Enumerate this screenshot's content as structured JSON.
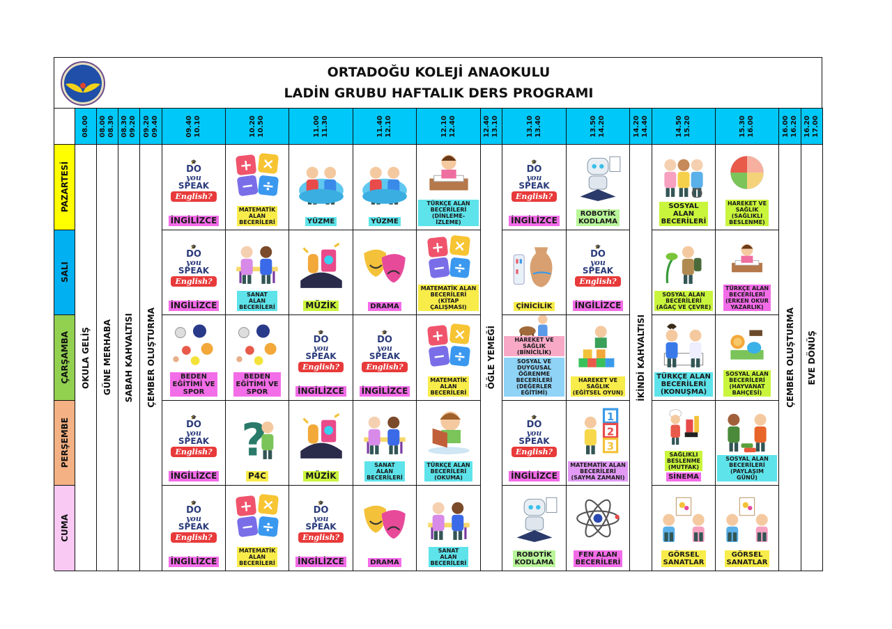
{
  "header": {
    "title_line1": "ORTADOĞU KOLEJİ ANAOKULU",
    "title_line2": "LADİN GRUBU HAFTALIK DERS PROGRAMI",
    "logo_text": "ORTADOĞU KOLEJİ"
  },
  "english_badge": {
    "line1": "DO",
    "line2": "you",
    "line3": "SPEAK",
    "line4": "English?"
  },
  "time_columns": [
    "08.00",
    "08.00\n08.30",
    "08.30\n09.20",
    "09.20\n09.40",
    "09.40\n10.10",
    "10.20\n10.50",
    "11.00\n11.30",
    "11.40\n12.10",
    "12.10\n12.40",
    "12.40\n13.10",
    "13.10\n13.40",
    "13.50\n14.20",
    "14.20\n14.40",
    "14.50\n15.20",
    "15.30\n16.00",
    "16.00\n16.20",
    "16.20\n17.00"
  ],
  "fixed_activities": [
    {
      "col": 0,
      "label": "OKULA GELİŞ"
    },
    {
      "col": 1,
      "label": "GÜNE MERHABA"
    },
    {
      "col": 2,
      "label": "SABAH KAHVALTISI"
    },
    {
      "col": 3,
      "label": "ÇEMBER OLUŞTURMA"
    },
    {
      "col": 9,
      "label": "ÖĞLE YEMEĞİ"
    },
    {
      "col": 12,
      "label": "İKİNDİ KAHVALTISI"
    },
    {
      "col": 15,
      "label": "ÇEMBER OLUŞTURMA"
    },
    {
      "col": 16,
      "label": "EVE DÖNÜŞ"
    }
  ],
  "colors": {
    "header": "#00c8f8",
    "pink": "#f36ce8",
    "yellow": "#f8ec4a",
    "cyan": "#5ee3ea",
    "lime": "#c9f53c",
    "green": "#b9f59a",
    "rose": "#f7a9c6",
    "blue": "#8fd3f7"
  },
  "days": [
    {
      "name": "PAZARTESİ",
      "color": "#ffff00",
      "cells": [
        {
          "icon": "english",
          "labels": [
            {
              "text": "İNGİLİZCE",
              "color": "#f36ce8",
              "size": "big"
            }
          ]
        },
        {
          "icon": "math",
          "labels": [
            {
              "text": "MATEMATİK\nALAN\nBECERİLERİ",
              "color": "#f8ec4a"
            }
          ]
        },
        {
          "icon": "swim",
          "labels": [
            {
              "text": "YÜZME",
              "color": "#5ee3ea",
              "size": "mid"
            }
          ]
        },
        {
          "icon": "swim",
          "labels": [
            {
              "text": "YÜZME",
              "color": "#5ee3ea",
              "size": "mid"
            }
          ]
        },
        {
          "icon": "writing",
          "labels": [
            {
              "text": "TÜRKÇE ALAN\nBECERİLERİ\n(DİNLEME-İZLEME)",
              "color": "#5ee3ea"
            }
          ]
        },
        {
          "icon": "english",
          "labels": [
            {
              "text": "İNGİLİZCE",
              "color": "#f36ce8",
              "size": "big"
            }
          ]
        },
        {
          "icon": "robot",
          "labels": [
            {
              "text": "ROBOTİK\nKODLAMA",
              "color": "#b9f59a",
              "size": "mid"
            }
          ]
        },
        {
          "icon": "kids",
          "labels": [
            {
              "text": "SOSYAL\nALAN\nBECERİLERİ",
              "color": "#c9f53c",
              "size": "mid"
            }
          ]
        },
        {
          "icon": "food",
          "labels": [
            {
              "text": "HAREKET VE\nSAĞLIK\n(SAĞLIKLI\nBESLENME)",
              "color": "#c9f53c"
            }
          ]
        }
      ]
    },
    {
      "name": "SALI",
      "color": "#00b0f0",
      "cells": [
        {
          "icon": "english",
          "labels": [
            {
              "text": "İNGİLİZCE",
              "color": "#f36ce8",
              "size": "big"
            }
          ]
        },
        {
          "icon": "art",
          "labels": [
            {
              "text": "SANAT\nALAN\nBECERİLERİ",
              "color": "#5ee3ea"
            }
          ]
        },
        {
          "icon": "music",
          "labels": [
            {
              "text": "MÜZİK",
              "color": "#c9f53c",
              "size": "big"
            }
          ]
        },
        {
          "icon": "drama",
          "labels": [
            {
              "text": "DRAMA",
              "color": "#f36ce8",
              "size": "mid"
            }
          ]
        },
        {
          "icon": "math",
          "labels": [
            {
              "text": "MATEMATİK ALAN\nBECERİLERİ\n(KİTAP ÇALIŞMASI)",
              "color": "#f8ec4a"
            }
          ]
        },
        {
          "icon": "vase",
          "labels": [
            {
              "text": "ÇİNİCİLİK",
              "color": "#f8ec4a",
              "size": "mid"
            }
          ]
        },
        {
          "icon": "english",
          "labels": [
            {
              "text": "İNGİLİZCE",
              "color": "#f36ce8",
              "size": "big"
            }
          ]
        },
        {
          "icon": "explorer",
          "labels": [
            {
              "text": "SOSYAL ALAN\nBECERİLERİ\n(AĞAÇ VE ÇEVRE)",
              "color": "#c9f53c"
            }
          ]
        },
        {
          "icon": "writing",
          "labels": [
            {
              "text": "TÜRKÇE ALAN\nBECERİLERİ\n(ERKEN OKUR\nYAZARLIK)",
              "color": "#f36ce8"
            }
          ]
        }
      ]
    },
    {
      "name": "ÇARŞAMBA",
      "color": "#92d050",
      "cells": [
        {
          "icon": "sport",
          "labels": [
            {
              "text": "BEDEN\nEĞİTİMİ VE\nSPOR",
              "color": "#f36ce8",
              "size": "mid"
            }
          ]
        },
        {
          "icon": "sport",
          "labels": [
            {
              "text": "BEDEN\nEĞİTİMİ VE\nSPOR",
              "color": "#f36ce8",
              "size": "mid"
            }
          ]
        },
        {
          "icon": "english",
          "labels": [
            {
              "text": "İNGİLİZCE",
              "color": "#f36ce8",
              "size": "big"
            }
          ]
        },
        {
          "icon": "english",
          "labels": [
            {
              "text": "İNGİLİZCE",
              "color": "#f36ce8",
              "size": "big"
            }
          ]
        },
        {
          "icon": "math",
          "labels": [
            {
              "text": "MATEMATİK\nALAN\nBECERİLERİ",
              "color": "#f8ec4a"
            }
          ]
        },
        {
          "icon": "horse",
          "labels": [
            {
              "text": "HAREKET VE SAĞLIK\n(BİNİCİLİK)",
              "color": "#f7a9c6"
            },
            {
              "text": "SOSYAL VE\nDUYGUSAL ÖĞRENME\nBECERİLERİ\n(DEĞERLER EĞİTİMİ)",
              "color": "#8fd3f7"
            }
          ]
        },
        {
          "icon": "blocks",
          "labels": [
            {
              "text": "HAREKET VE\nSAĞLIK\n(EĞİTSEL OYUN)",
              "color": "#f8ec4a"
            }
          ]
        },
        {
          "icon": "talk",
          "labels": [
            {
              "text": "TÜRKÇE ALAN\nBECERİLERİ\n(KONUŞMA)",
              "color": "#5ee3ea",
              "size": "mid"
            }
          ]
        },
        {
          "icon": "zoo",
          "labels": [
            {
              "text": "SOSYAL ALAN\nBECERİLERİ\n(HAYVANAT\nBAHÇESİ)",
              "color": "#c9f53c"
            }
          ]
        }
      ]
    },
    {
      "name": "PERŞEMBE",
      "color": "#f4b183",
      "cells": [
        {
          "icon": "english",
          "labels": [
            {
              "text": "İNGİLİZCE",
              "color": "#f36ce8",
              "size": "big"
            }
          ]
        },
        {
          "icon": "question",
          "labels": [
            {
              "text": "P4C",
              "color": "#f8ec4a",
              "size": "big"
            }
          ]
        },
        {
          "icon": "music",
          "labels": [
            {
              "text": "MÜZİK",
              "color": "#c9f53c",
              "size": "big"
            }
          ]
        },
        {
          "icon": "art",
          "labels": [
            {
              "text": "SANAT\nALAN\nBECERİLERİ",
              "color": "#5ee3ea"
            }
          ]
        },
        {
          "icon": "reading",
          "labels": [
            {
              "text": "TÜRKÇE ALAN\nBECERİLERİ\n(OKUMA)",
              "color": "#5ee3ea"
            }
          ]
        },
        {
          "icon": "english",
          "labels": [
            {
              "text": "İNGİLİZCE",
              "color": "#f36ce8",
              "size": "big"
            }
          ]
        },
        {
          "icon": "numbers",
          "labels": [
            {
              "text": "MATEMATİK ALAN\nBECERİLERİ\n(SAYMA ZAMANI)",
              "color": "#e29af5"
            }
          ]
        },
        {
          "icon": "chef",
          "labels": [
            {
              "text": "SAĞLIKLI\nBESLENME\n(MUTFAK)",
              "color": "#c9f53c"
            },
            {
              "text": "SİNEMA",
              "color": "#f36ce8",
              "size": "mid"
            }
          ]
        },
        {
          "icon": "toys",
          "labels": [
            {
              "text": "SOSYAL ALAN\nBECERİLERİ\n(PAYLAŞIM GÜNÜ)",
              "color": "#5ee3ea"
            }
          ]
        }
      ]
    },
    {
      "name": "CUMA",
      "color": "#f9c9f3",
      "cells": [
        {
          "icon": "english",
          "labels": [
            {
              "text": "İNGİLİZCE",
              "color": "#f36ce8",
              "size": "big"
            }
          ]
        },
        {
          "icon": "math",
          "labels": [
            {
              "text": "MATEMATİK\nALAN\nBECERİLERİ",
              "color": "#f8ec4a"
            }
          ]
        },
        {
          "icon": "english",
          "labels": [
            {
              "text": "İNGİLİZCE",
              "color": "#f36ce8",
              "size": "big"
            }
          ]
        },
        {
          "icon": "drama",
          "labels": [
            {
              "text": "DRAMA",
              "color": "#f36ce8",
              "size": "mid"
            }
          ]
        },
        {
          "icon": "art",
          "labels": [
            {
              "text": "SANAT\nALAN\nBECERİLERİ",
              "color": "#5ee3ea"
            }
          ]
        },
        {
          "icon": "robot",
          "labels": [
            {
              "text": "ROBOTİK\nKODLAMA",
              "color": "#b9f59a",
              "size": "mid"
            }
          ]
        },
        {
          "icon": "atom",
          "labels": [
            {
              "text": "FEN ALAN\nBECERİLERİ",
              "color": "#f36ce8",
              "size": "mid"
            }
          ]
        },
        {
          "icon": "painting",
          "labels": [
            {
              "text": "GÖRSEL\nSANATLAR",
              "color": "#f8ec4a",
              "size": "mid"
            }
          ]
        },
        {
          "icon": "painting",
          "labels": [
            {
              "text": "GÖRSEL\nSANATLAR",
              "color": "#f8ec4a",
              "size": "mid"
            }
          ]
        }
      ]
    }
  ]
}
